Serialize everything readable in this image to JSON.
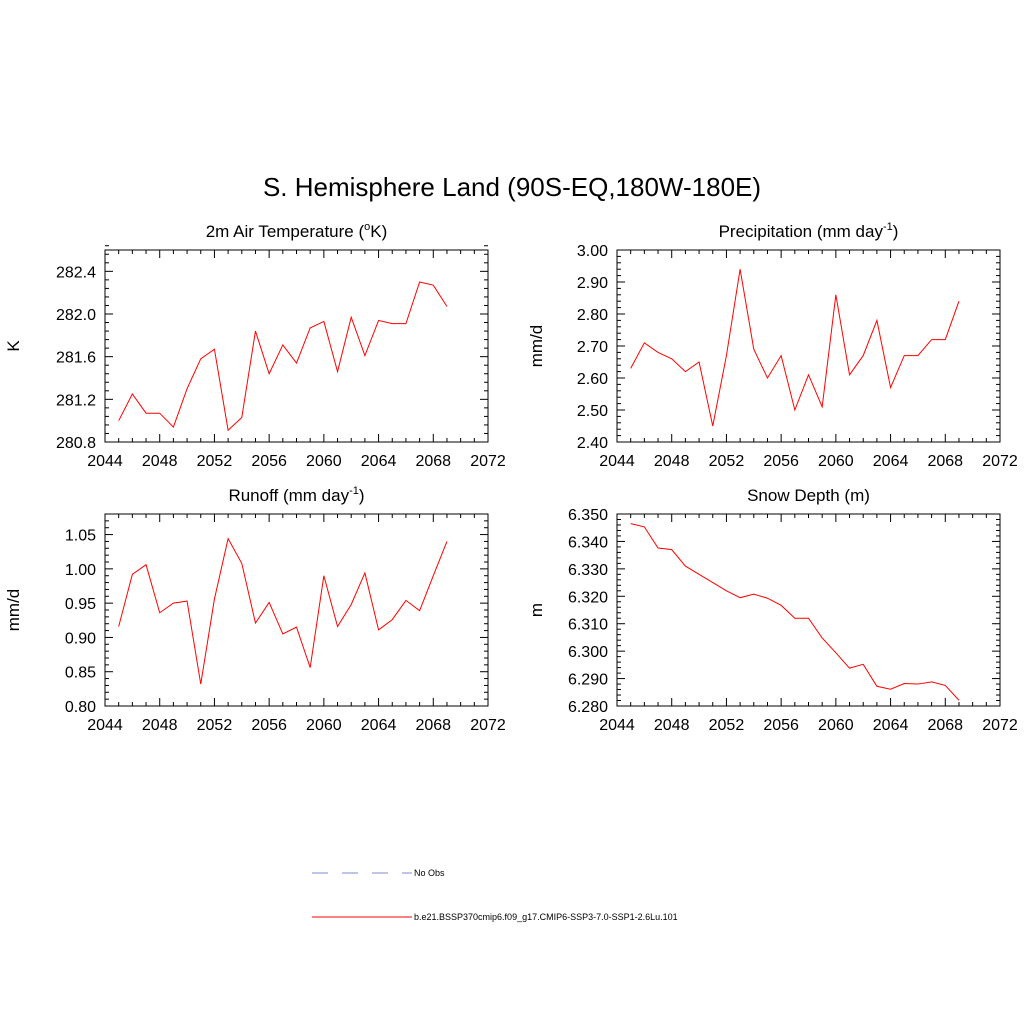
{
  "title": "S. Hemisphere Land (90S-EQ,180W-180E)",
  "colors": {
    "model": "#ff0000",
    "obs": "#aab0e0",
    "axis": "#000000"
  },
  "legend": {
    "obs_label": "No Obs",
    "model_label": "b.e21.BSSP370cmip6.f09_g17.CMIP6-SSP3-7.0-SSP1-2.6Lu.101"
  },
  "chart_data": [
    {
      "type": "line",
      "title": "2m Air Temperature (",
      "title_sup": "o",
      "title_post": "K)",
      "ylabel": "K",
      "xlim": [
        2044,
        2072
      ],
      "ylim": [
        280.8,
        282.6
      ],
      "x_ticks": [
        2044,
        2048,
        2052,
        2056,
        2060,
        2064,
        2068,
        2072
      ],
      "x_tick_labels": [
        "2044",
        "2048",
        "2052",
        "2056",
        "2060",
        "2064",
        "2068",
        "2072"
      ],
      "y_ticks": [
        280.8,
        281.2,
        281.6,
        282.0,
        282.4
      ],
      "y_tick_labels": [
        "280.8",
        "281.2",
        "281.6",
        "282.0",
        "282.4"
      ],
      "y_minor_step": 0.08,
      "x": [
        2045,
        2046,
        2047,
        2048,
        2049,
        2050,
        2051,
        2052,
        2053,
        2054,
        2055,
        2056,
        2057,
        2058,
        2059,
        2060,
        2061,
        2062,
        2063,
        2064,
        2065,
        2066,
        2067,
        2068,
        2069
      ],
      "series": [
        {
          "values": [
            281.0,
            281.25,
            281.07,
            281.07,
            280.94,
            281.3,
            281.58,
            281.67,
            280.91,
            281.03,
            281.84,
            281.44,
            281.71,
            281.54,
            281.87,
            281.93,
            281.46,
            281.97,
            281.61,
            281.94,
            281.91,
            281.91,
            282.3,
            282.27,
            282.07
          ]
        }
      ]
    },
    {
      "type": "line",
      "title": "Precipitation (mm day",
      "title_sup": "-1",
      "title_post": ")",
      "ylabel": "mm/d",
      "xlim": [
        2044,
        2072
      ],
      "ylim": [
        2.4,
        3.0
      ],
      "x_ticks": [
        2044,
        2048,
        2052,
        2056,
        2060,
        2064,
        2068,
        2072
      ],
      "x_tick_labels": [
        "2044",
        "2048",
        "2052",
        "2056",
        "2060",
        "2064",
        "2068",
        "2072"
      ],
      "y_ticks": [
        2.4,
        2.5,
        2.6,
        2.7,
        2.8,
        2.9,
        3.0
      ],
      "y_tick_labels": [
        "2.40",
        "2.50",
        "2.60",
        "2.70",
        "2.80",
        "2.90",
        "3.00"
      ],
      "y_minor_step": 0.02,
      "x": [
        2045,
        2046,
        2047,
        2048,
        2049,
        2050,
        2051,
        2052,
        2053,
        2054,
        2055,
        2056,
        2057,
        2058,
        2059,
        2060,
        2061,
        2062,
        2063,
        2064,
        2065,
        2066,
        2067,
        2068,
        2069
      ],
      "series": [
        {
          "values": [
            2.63,
            2.71,
            2.68,
            2.66,
            2.62,
            2.65,
            2.45,
            2.67,
            2.94,
            2.69,
            2.6,
            2.67,
            2.5,
            2.61,
            2.51,
            2.86,
            2.61,
            2.67,
            2.78,
            2.57,
            2.67,
            2.67,
            2.72,
            2.72,
            2.84
          ]
        }
      ]
    },
    {
      "type": "line",
      "title": "Runoff (mm day",
      "title_sup": "-1",
      "title_post": ")",
      "ylabel": "mm/d",
      "xlim": [
        2044,
        2072
      ],
      "ylim": [
        0.8,
        1.08
      ],
      "x_ticks": [
        2044,
        2048,
        2052,
        2056,
        2060,
        2064,
        2068,
        2072
      ],
      "x_tick_labels": [
        "2044",
        "2048",
        "2052",
        "2056",
        "2060",
        "2064",
        "2068",
        "2072"
      ],
      "y_ticks": [
        0.8,
        0.85,
        0.9,
        0.95,
        1.0,
        1.05
      ],
      "y_tick_labels": [
        "0.80",
        "0.85",
        "0.90",
        "0.95",
        "1.00",
        "1.05"
      ],
      "y_minor_step": 0.01,
      "x": [
        2045,
        2046,
        2047,
        2048,
        2049,
        2050,
        2051,
        2052,
        2053,
        2054,
        2055,
        2056,
        2057,
        2058,
        2059,
        2060,
        2061,
        2062,
        2063,
        2064,
        2065,
        2066,
        2067,
        2068,
        2069
      ],
      "series": [
        {
          "values": [
            0.916,
            0.992,
            1.006,
            0.936,
            0.95,
            0.953,
            0.832,
            0.956,
            1.044,
            1.008,
            0.921,
            0.951,
            0.905,
            0.915,
            0.856,
            0.99,
            0.916,
            0.948,
            0.994,
            0.911,
            0.926,
            0.954,
            0.939,
            0.99,
            1.04
          ]
        }
      ]
    },
    {
      "type": "line",
      "title": "Snow Depth (m)",
      "title_sup": "",
      "title_post": "",
      "ylabel": "m",
      "xlim": [
        2044,
        2072
      ],
      "ylim": [
        6.28,
        6.35
      ],
      "x_ticks": [
        2044,
        2048,
        2052,
        2056,
        2060,
        2064,
        2068,
        2072
      ],
      "x_tick_labels": [
        "2044",
        "2048",
        "2052",
        "2056",
        "2060",
        "2064",
        "2068",
        "2072"
      ],
      "y_ticks": [
        6.28,
        6.29,
        6.3,
        6.31,
        6.32,
        6.33,
        6.34,
        6.35
      ],
      "y_tick_labels": [
        "6.280",
        "6.290",
        "6.300",
        "6.310",
        "6.320",
        "6.330",
        "6.340",
        "6.350"
      ],
      "y_minor_step": 0.002,
      "x": [
        2045,
        2046,
        2047,
        2048,
        2049,
        2050,
        2051,
        2052,
        2053,
        2054,
        2055,
        2056,
        2057,
        2058,
        2059,
        2060,
        2061,
        2062,
        2063,
        2064,
        2065,
        2066,
        2067,
        2068,
        2069
      ],
      "series": [
        {
          "values": [
            6.3465,
            6.3453,
            6.3376,
            6.337,
            6.331,
            6.328,
            6.325,
            6.322,
            6.3195,
            6.3208,
            6.3193,
            6.3167,
            6.312,
            6.312,
            6.3048,
            6.2994,
            6.2938,
            6.2952,
            6.2872,
            6.2861,
            6.2882,
            6.288,
            6.2888,
            6.2875,
            6.2821
          ]
        }
      ]
    }
  ]
}
